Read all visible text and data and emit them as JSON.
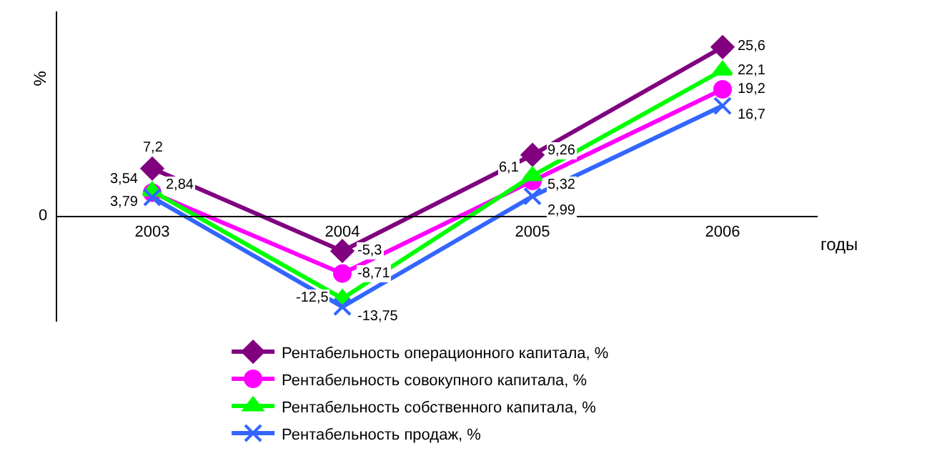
{
  "chart_data": {
    "type": "line",
    "ylabel": "%",
    "xlabel": "годы",
    "categories": [
      "2003",
      "2004",
      "2005",
      "2006"
    ],
    "series": [
      {
        "name": "Рентабельность операционного капитала, %",
        "color": "#800080",
        "marker": "diamond",
        "values": [
          7.2,
          -5.3,
          9.26,
          25.6
        ],
        "value_labels": [
          "7,2",
          "-5,3",
          "9,26",
          "25,6"
        ]
      },
      {
        "name": "Рентабельность совокупного капитала, %",
        "color": "#ff00ff",
        "marker": "circle",
        "values": [
          3.54,
          -8.71,
          5.32,
          19.2
        ],
        "value_labels": [
          "3,54",
          "-8,71",
          "5,32",
          "19,2"
        ]
      },
      {
        "name": "Рентабельность собственного капитала, %",
        "color": "#00ff00",
        "marker": "triangle",
        "values": [
          3.79,
          -12.5,
          6.1,
          22.1
        ],
        "value_labels": [
          "3,79",
          "-12,5",
          "6,1",
          "22,1"
        ]
      },
      {
        "name": "Рентабельность продаж, %",
        "color": "#3366ff",
        "marker": "cross",
        "values": [
          2.84,
          -13.75,
          2.99,
          16.7
        ],
        "value_labels": [
          "2,84",
          "-13,75",
          "2,99",
          "16,7"
        ]
      }
    ],
    "ylim": [
      -16,
      31
    ],
    "annotations": [
      "0"
    ],
    "legend": "bottom"
  }
}
